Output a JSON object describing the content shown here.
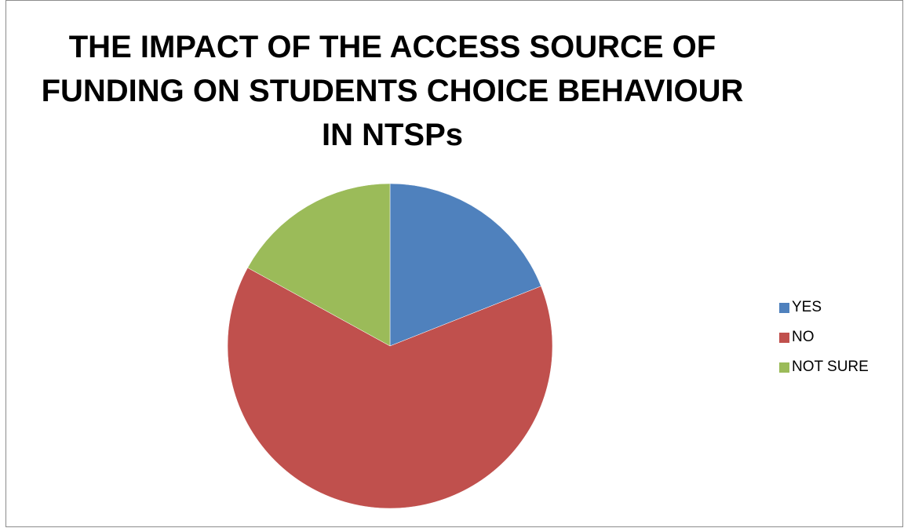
{
  "chart_data": {
    "type": "pie",
    "title": "THE IMPACT OF THE ACCESS SOURCE OF FUNDING ON STUDENTS CHOICE BEHAVIOUR IN NTSPs",
    "title_lines": [
      "THE IMPACT OF THE ACCESS SOURCE OF",
      "FUNDING ON STUDENTS CHOICE BEHAVIOUR",
      "IN NTSPs"
    ],
    "categories": [
      "YES",
      "NO",
      "NOT SURE"
    ],
    "values": [
      19,
      64,
      17
    ],
    "colors": [
      "#4f81bd",
      "#c0504d",
      "#9bbb59"
    ],
    "legend_position": "right"
  }
}
